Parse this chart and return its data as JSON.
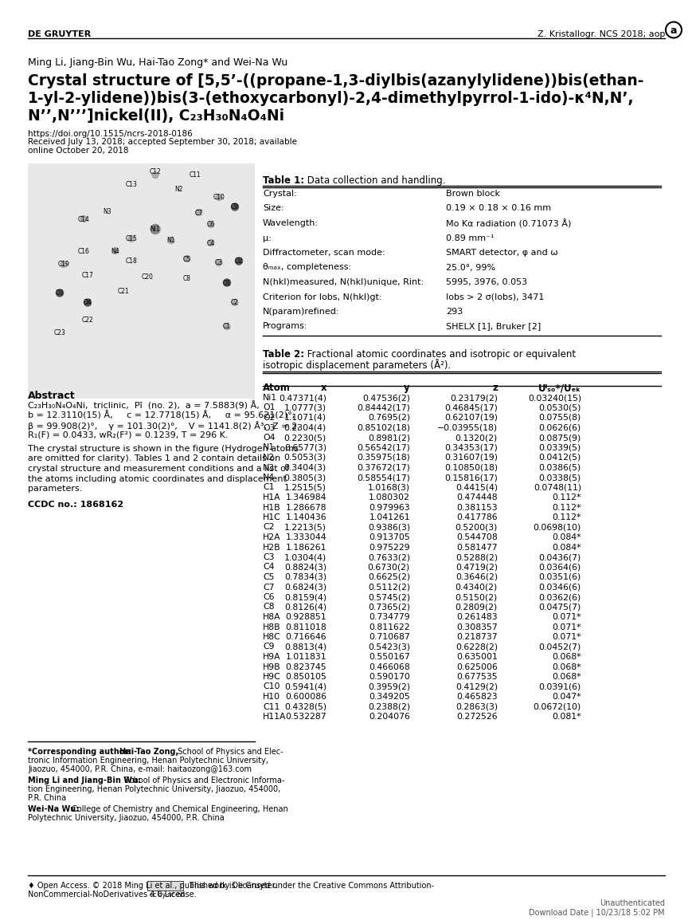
{
  "header_left": "DE GRUYTER",
  "header_right": "Z. Kristallogr. NCS 2018; aop",
  "authors": "Ming Li, Jiang-Bin Wu, Hai-Tao Zong* and Wei-Na Wu",
  "title_bold": "Crystal structure of [5,5’-((propane-1,3-diylbis(azanylylidene))bis(ethan-\n1-yl-2-ylidene))bis(3-(ethoxycarbonyl)-2,4-dimethylpyrrol-1-ido)-κ⁴N,N’,\nN’’,N’’’]nickel(II), C₂₃H₃₀N₄O₄Ni",
  "doi": "https://doi.org/10.1515/ncrs-2018-0186",
  "received": "Received July 13, 2018; accepted September 30, 2018; available\nonline October 20, 2018",
  "abstract_title": "Abstract",
  "abstract_text": "C₂₃H₃₀N₄O₄Ni,  triclinic,  Pī  (no. 2),  a = 7.5883(9) Å,\nb = 12.3110(15) Å,     c = 12.7718(15) Å,     α = 95.621(2)°,\nβ = 99.908(2)°,    γ = 101.30(2)°,    V = 1141.8(2) Å³,  Z = 2,\nR₁(F) = 0.0433, wR₂(F²) = 0.1239, T = 296 K.",
  "crystal_description": "The crystal structure is shown in the figure (Hydrogen atoms\nare omitted for clarity). Tables 1 and 2 contain details on\ncrystal structure and measurement conditions and a list of\nthe atoms including atomic coordinates and displacement\nparameters.",
  "ccdc_label": "CCDC no.: 1868162",
  "table1_title": "Table 1: Data collection and handling.",
  "table1_rows": [
    [
      "Crystal:",
      "",
      "Brown block"
    ],
    [
      "Size:",
      "",
      "0.19 × 0.18 × 0.16 mm"
    ],
    [
      "Wavelength:",
      "",
      "Mo Kα radiation (0.71073 Å)"
    ],
    [
      "μ:",
      "",
      "0.89 mm⁻¹"
    ],
    [
      "Diffractometer, scan mode:",
      "",
      "SMART detector, φ and ω"
    ],
    [
      "θₘₐₓ, completeness:",
      "",
      "25.0°, 99%"
    ],
    [
      "N(hkl)ₘₐₐₛᵤᵣₑᵈ, N(hkl)ᵤₙᵢᵢᵤᵉ, Rᴵₙₜ:",
      "",
      "5995, 3976, 0.053"
    ],
    [
      "Criterion for Iₒƀₛ, N(hkl)ᴳₜ:",
      "",
      "Iₒƀₛ > 2 σ(Iₒƀₛ), 3471"
    ],
    [
      "N(param)ᴿᵉᶠᴵₙᵉᵈ:",
      "",
      "293"
    ],
    [
      "Programs:",
      "",
      "SHELX [1], Bruker [2]"
    ]
  ],
  "table2_title": "Table 2: Fractional atomic coordinates and isotropic or equivalent\nisotropic displacement parameters (Å²).",
  "table2_headers": [
    "Atom",
    "x",
    "y",
    "z",
    "Uᴵₛₒ*/Uₑₖ"
  ],
  "table2_rows": [
    [
      "Ni1",
      "0.47371(4)",
      "0.47536(2)",
      "0.23179(2)",
      "0.03240(15)"
    ],
    [
      "O1",
      "1.0777(3)",
      "0.84442(17)",
      "0.46845(17)",
      "0.0530(5)"
    ],
    [
      "O2",
      "1.1071(4)",
      "0.7695(2)",
      "0.62107(19)",
      "0.0755(8)"
    ],
    [
      "O3",
      "0.2304(4)",
      "0.85102(18)",
      "−0.03955(18)",
      "0.0626(6)"
    ],
    [
      "O4",
      "0.2230(5)",
      "0.8981(2)",
      "0.1320(2)",
      "0.0875(9)"
    ],
    [
      "N1",
      "0.6577(3)",
      "0.56542(17)",
      "0.34353(17)",
      "0.0339(5)"
    ],
    [
      "N2",
      "0.5053(3)",
      "0.35975(18)",
      "0.31607(19)",
      "0.0412(5)"
    ],
    [
      "N3",
      "0.3404(3)",
      "0.37672(17)",
      "0.10850(18)",
      "0.0386(5)"
    ],
    [
      "N4",
      "0.3805(3)",
      "0.58554(17)",
      "0.15816(17)",
      "0.0338(5)"
    ],
    [
      "C1",
      "1.2515(5)",
      "1.0168(3)",
      "0.4415(4)",
      "0.0748(11)"
    ],
    [
      "H1A",
      "1.346984",
      "1.080302",
      "0.474448",
      "0.112*"
    ],
    [
      "H1B",
      "1.286678",
      "0.979963",
      "0.381153",
      "0.112*"
    ],
    [
      "H1C",
      "1.140436",
      "1.041261",
      "0.417786",
      "0.112*"
    ],
    [
      "C2",
      "1.2213(5)",
      "0.9386(3)",
      "0.5200(3)",
      "0.0698(10)"
    ],
    [
      "H2A",
      "1.333044",
      "0.913705",
      "0.544708",
      "0.084*"
    ],
    [
      "H2B",
      "1.186261",
      "0.975229",
      "0.581477",
      "0.084*"
    ],
    [
      "C3",
      "1.0304(4)",
      "0.7633(2)",
      "0.5288(2)",
      "0.0436(7)"
    ],
    [
      "C4",
      "0.8824(3)",
      "0.6730(2)",
      "0.4719(2)",
      "0.0364(6)"
    ],
    [
      "C5",
      "0.7834(3)",
      "0.6625(2)",
      "0.3646(2)",
      "0.0351(6)"
    ],
    [
      "C7",
      "0.6824(3)",
      "0.5112(2)",
      "0.4340(2)",
      "0.0346(6)"
    ],
    [
      "C6",
      "0.8159(4)",
      "0.5745(2)",
      "0.5150(2)",
      "0.0362(6)"
    ],
    [
      "C8",
      "0.8126(4)",
      "0.7365(2)",
      "0.2809(2)",
      "0.0475(7)"
    ],
    [
      "H8A",
      "0.928851",
      "0.734779",
      "0.261483",
      "0.071*"
    ],
    [
      "H8B",
      "0.811018",
      "0.811622",
      "0.308357",
      "0.071*"
    ],
    [
      "H8C",
      "0.716646",
      "0.710687",
      "0.218737",
      "0.071*"
    ],
    [
      "C9",
      "0.8813(4)",
      "0.5423(3)",
      "0.6228(2)",
      "0.0452(7)"
    ],
    [
      "H9A",
      "1.011831",
      "0.550167",
      "0.635001",
      "0.068*"
    ],
    [
      "H9B",
      "0.823745",
      "0.466068",
      "0.625006",
      "0.068*"
    ],
    [
      "H9C",
      "0.850105",
      "0.590170",
      "0.677535",
      "0.068*"
    ],
    [
      "C10",
      "0.5941(4)",
      "0.3959(2)",
      "0.4129(2)",
      "0.0391(6)"
    ],
    [
      "H10",
      "0.600086",
      "0.349205",
      "0.465823",
      "0.047*"
    ],
    [
      "C11",
      "0.4328(5)",
      "0.2388(2)",
      "0.2863(3)",
      "0.0672(10)"
    ],
    [
      "H11A",
      "0.532287",
      "0.204076",
      "0.272526",
      "0.081*"
    ]
  ],
  "footnote_corresponding": "*Corresponding author: Hai-Tao Zong, School of Physics and Electronic Information Engineering, Henan Polytechnic University, Jiaozuo, 454000, P.R. China, e-mail: haitaozong@163.com",
  "footnote_ming": "Ming Li and Jiang-Bin Wu: School of Physics and Electronic Information Engineering, Henan Polytechnic University, Jiaozuo, 454000, P.R. China",
  "footnote_weina": "Wei-Na Wu: College of Chemistry and Chemical Engineering, Henan Polytechnic University, Jiaozuo, 454000, P.R. China",
  "footer_license": "Open Access. © 2018 Ming Li et al., published by De Gruyter.      This work is licensed under the Creative Commons Attribution-NonCommercial-NoDerivatives 4.0 License.",
  "footer_unauth": "Unauthenticated\nDownload Date | 10/23/18 5:02 PM",
  "bg_color": "#ffffff",
  "text_color": "#000000",
  "line_color": "#000000"
}
